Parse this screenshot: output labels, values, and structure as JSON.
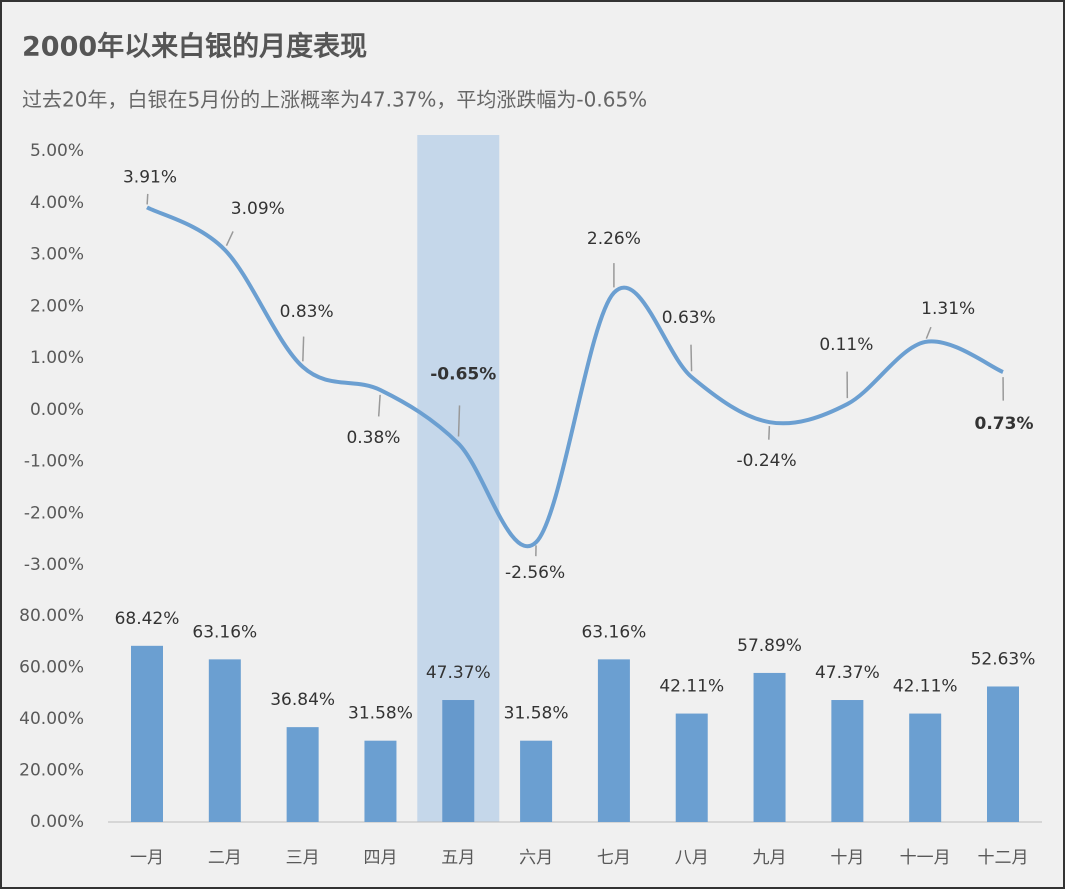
{
  "chart_data": [
    {
      "type": "line",
      "title": "2000年以来白银的月度表现",
      "subtitle": "过去20年，白银在5月份的上涨概率为47.37%，平均涨跌幅为-0.65%",
      "color": "#6b9fd1",
      "values": [
        3.91,
        3.09,
        0.83,
        0.38,
        -0.65,
        -2.56,
        2.26,
        0.63,
        -0.24,
        0.11,
        1.31,
        0.73
      ],
      "value_labels": [
        "3.91%",
        "3.09%",
        "0.83%",
        "0.38%",
        "-0.65%",
        "-2.56%",
        "2.26%",
        "0.63%",
        "-0.24%",
        "0.11%",
        "1.31%",
        "0.73%"
      ],
      "ylim": [
        -3,
        5
      ],
      "yticks": [
        {
          "value": -3,
          "label": "-3.00%"
        },
        {
          "value": -2,
          "label": "-2.00%"
        },
        {
          "value": -1,
          "label": "-1.00%"
        },
        {
          "value": 0,
          "label": "0.00%"
        },
        {
          "value": 1,
          "label": "1.00%"
        },
        {
          "value": 2,
          "label": "2.00%"
        },
        {
          "value": 3,
          "label": "3.00%"
        },
        {
          "value": 4,
          "label": "4.00%"
        },
        {
          "value": 5,
          "label": "5.00%"
        }
      ]
    },
    {
      "type": "bar",
      "color": "#6b9fd1",
      "highlight": 4,
      "highlight_color": "#c5d7ea",
      "highlight_bar_color": "#6699cc",
      "categories": [
        "一月",
        "二月",
        "三月",
        "四月",
        "五月",
        "六月",
        "七月",
        "八月",
        "九月",
        "十月",
        "十一月",
        "十二月"
      ],
      "values": [
        68.42,
        63.16,
        36.84,
        31.58,
        47.37,
        31.58,
        63.16,
        42.11,
        57.89,
        47.37,
        42.11,
        52.63
      ],
      "value_labels": [
        "68.42%",
        "63.16%",
        "36.84%",
        "31.58%",
        "47.37%",
        "31.58%",
        "63.16%",
        "42.11%",
        "57.89%",
        "47.37%",
        "42.11%",
        "52.63%"
      ],
      "ylim": [
        0,
        80
      ],
      "yticks": [
        {
          "value": 0,
          "label": "0.00%"
        },
        {
          "value": 20,
          "label": "20.00%"
        },
        {
          "value": 40,
          "label": "40.00%"
        },
        {
          "value": 60,
          "label": "60.00%"
        },
        {
          "value": 80,
          "label": "80.00%"
        }
      ]
    }
  ]
}
